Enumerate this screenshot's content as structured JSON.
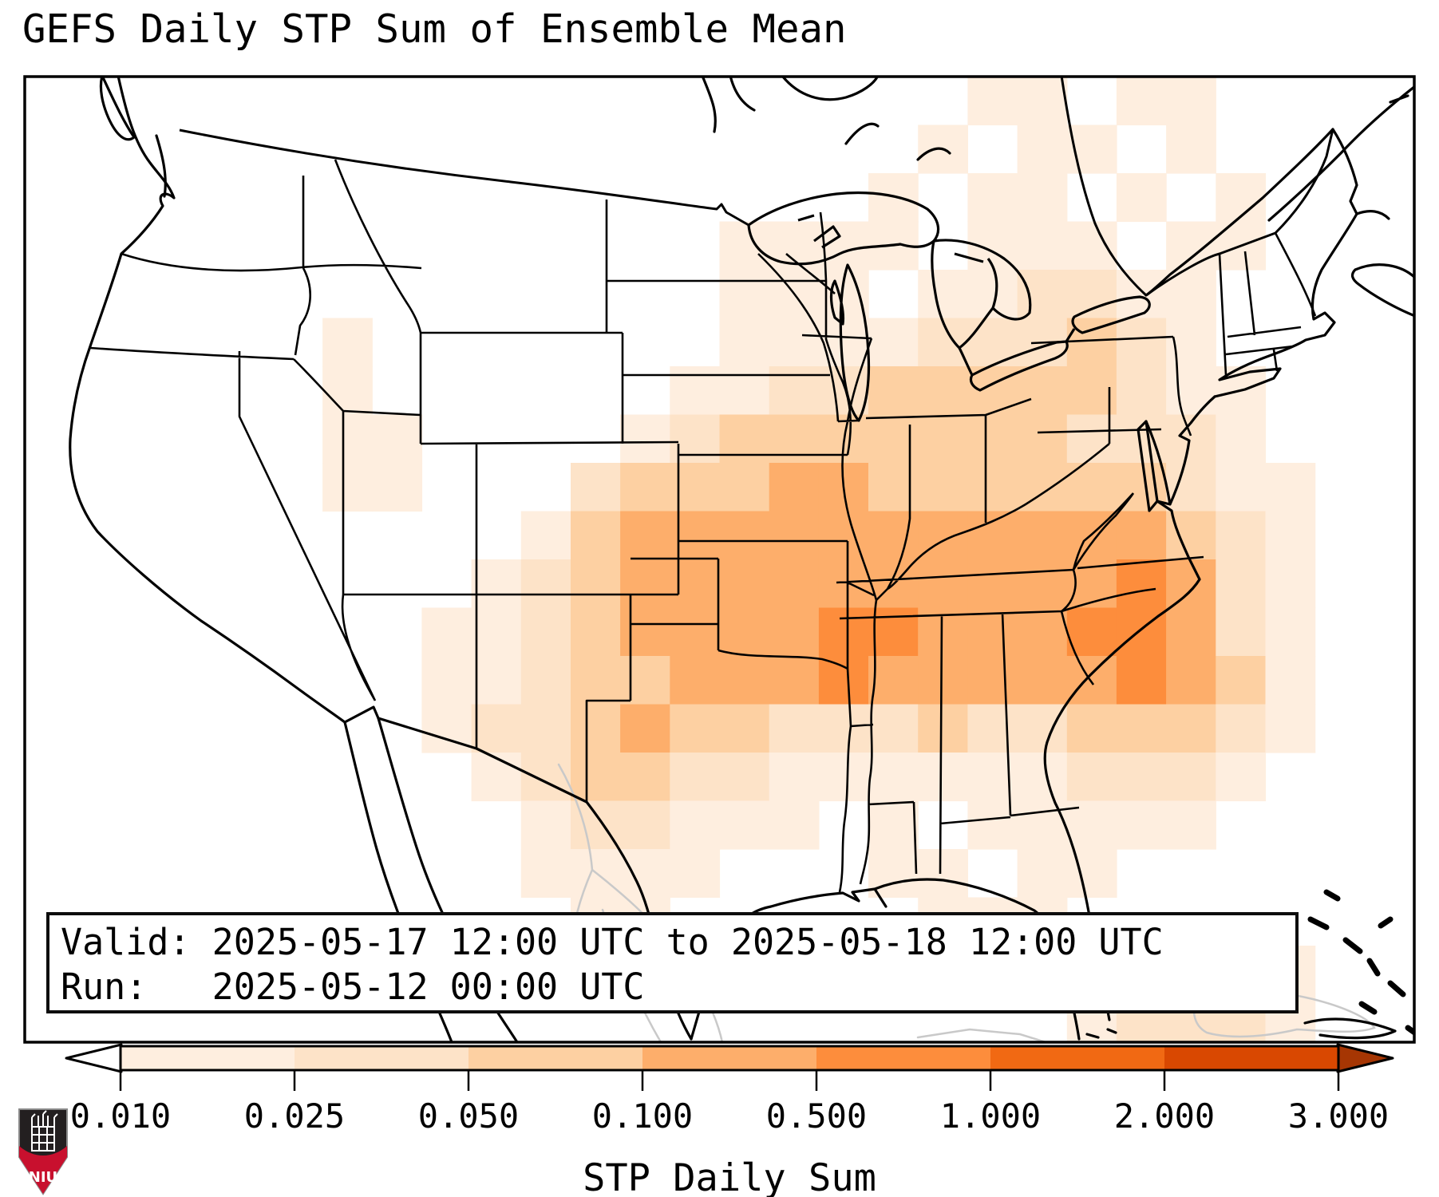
{
  "title": "GEFS Daily STP Sum of Ensemble Mean",
  "info_box": {
    "line1": "Valid: 2025-05-17 12:00 UTC to 2025-05-18 12:00 UTC",
    "line2": "Run:   2025-05-12 00:00 UTC"
  },
  "colorbar": {
    "label": "STP Daily Sum",
    "tick_labels": [
      "0.010",
      "0.025",
      "0.050",
      "0.100",
      "0.500",
      "1.000",
      "2.000",
      "3.000"
    ],
    "segment_colors": [
      "#feeedf",
      "#fde3c8",
      "#fdd0a2",
      "#fdae6b",
      "#fd8d3c",
      "#f16913",
      "#d94801"
    ],
    "under_arrow_color": "#ffffff",
    "over_arrow_color": "#a63603",
    "outline_color": "#000000"
  },
  "map": {
    "background": "#ffffff",
    "frame_color": "#000000",
    "coast_color": "#000000",
    "state_line_color": "#000000",
    "foreign_line_color": "#c9c9c9",
    "heatmap": {
      "palette": [
        "#ffffff",
        "#feeedf",
        "#fde3c8",
        "#fdd0a2",
        "#fdae6b",
        "#fd8d3c",
        "#f16913",
        "#d94801",
        "#a63603"
      ],
      "cols": 28,
      "rows": 20,
      "grid": [
        "0000000000000000000110110000",
        "0000000000000000001011010000",
        "0000000000000000010110101000",
        "0000000000000011110111011000",
        "0000000000000011101122110000",
        "0000001000000011112223210000",
        "0000001000000112233333211000",
        "0000001100001233333332221000",
        "0000001100023334433333321100",
        "0000000000134444444444432100",
        "0000000001234444444444542100",
        "0000000011234444554445542100",
        "0000000011233444544444543100",
        "0000000012234332223223332100",
        "0000000001233221111112221000",
        "0000000000122111010111110000",
        "0000000000111100011011000000",
        "0000000000011000001110000000",
        "0000000000001000000110001100",
        "0000000000000000000001222100"
      ]
    }
  },
  "logo": {
    "text": "NIU",
    "shield_color": "#231f20",
    "band_color": "#c8102e",
    "castle_color": "#ffffff"
  }
}
